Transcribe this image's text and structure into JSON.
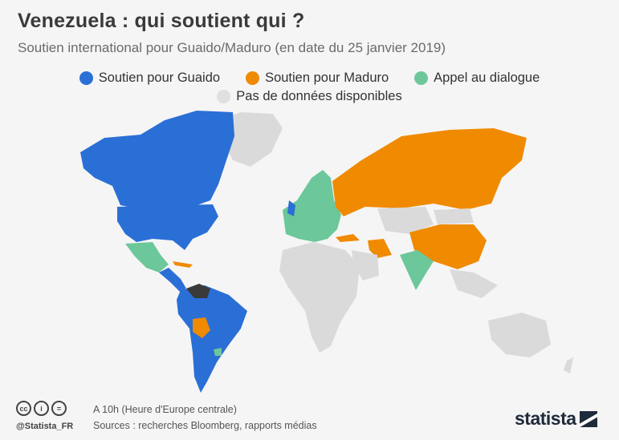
{
  "header": {
    "title": "Venezuela : qui soutient qui ?",
    "subtitle": "Soutien international pour Guaido/Maduro (en date du 25 janvier 2019)"
  },
  "legend": [
    {
      "label": "Soutien pour Guaido",
      "color": "#2a6fd6"
    },
    {
      "label": "Soutien pour Maduro",
      "color": "#f08a00"
    },
    {
      "label": "Appel au dialogue",
      "color": "#6cc79a"
    },
    {
      "label": "Pas de données disponibles",
      "color": "#e0e0e0"
    }
  ],
  "map": {
    "colors": {
      "guaido": "#2a6fd6",
      "maduro": "#f08a00",
      "dialogue": "#6cc79a",
      "nodata": "#dadada",
      "venezuela": "#3a3a3a"
    }
  },
  "footer": {
    "cc_icons": [
      "creative-commons-icon",
      "attribution-icon",
      "no-derivatives-icon"
    ],
    "handle": "@Statista_FR",
    "note": "A 10h (Heure d'Europe centrale)",
    "sources": "Sources : recherches Bloomberg, rapports médias",
    "brand": "statista"
  }
}
